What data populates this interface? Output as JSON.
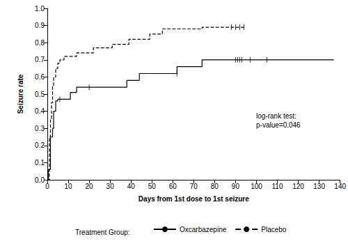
{
  "chart_data": {
    "type": "step",
    "x_label": "Days from 1st dose to 1st seizure",
    "y_label": "Seizure rate",
    "annotations": [
      "log-rank test:",
      "p-value=0.046"
    ],
    "legend_title": "Treatment Group:",
    "legend": "bottom",
    "grid": false,
    "xlim": [
      0,
      140
    ],
    "xticks": [
      0,
      10,
      20,
      30,
      40,
      50,
      60,
      70,
      80,
      90,
      100,
      110,
      120,
      130,
      140
    ],
    "ylim": [
      0,
      1
    ],
    "yticks": [
      {
        "value": 0,
        "label": "0.0"
      },
      {
        "value": 0.1,
        "label": "0.1"
      },
      {
        "value": 0.2,
        "label": "0.2"
      },
      {
        "value": 0.3,
        "label": "0.3"
      },
      {
        "value": 0.4,
        "label": "0.4"
      },
      {
        "value": 0.5,
        "label": "0.5"
      },
      {
        "value": 0.6,
        "label": "0.6"
      },
      {
        "value": 0.7,
        "label": "0.7"
      },
      {
        "value": 0.8,
        "label": "0.8"
      },
      {
        "value": 0.9,
        "label": "0.9"
      },
      {
        "value": 1,
        "label": "1.0"
      }
    ],
    "series": [
      {
        "name": "Oxcarbazepine",
        "color": "#000000",
        "line_style": "solid",
        "x": [
          0,
          0.5,
          1.5,
          2.5,
          3,
          4,
          5,
          11,
          14,
          38,
          44,
          62,
          68,
          74,
          137
        ],
        "values": [
          0,
          0.06,
          0.25,
          0.3,
          0.4,
          0.46,
          0.47,
          0.51,
          0.54,
          0.58,
          0.62,
          0.66,
          0.66,
          0.7,
          0.7
        ],
        "censored_x": [
          6,
          20,
          62,
          90,
          91,
          92,
          93,
          97,
          105
        ],
        "censored_y": [
          0.47,
          0.54,
          0.62,
          0.7,
          0.7,
          0.7,
          0.7,
          0.7,
          0.7
        ]
      },
      {
        "name": "Placebo",
        "color": "#000000",
        "line_style": "dashed",
        "x": [
          0,
          1,
          1.5,
          2,
          2.5,
          3,
          4,
          5,
          6,
          8,
          14,
          22,
          31,
          39,
          49,
          55,
          74,
          94
        ],
        "values": [
          0,
          0.25,
          0.35,
          0.45,
          0.55,
          0.6,
          0.65,
          0.68,
          0.7,
          0.72,
          0.74,
          0.77,
          0.79,
          0.82,
          0.85,
          0.88,
          0.89,
          0.89
        ],
        "censored_x": [
          88,
          90,
          92,
          94
        ],
        "censored_y": [
          0.89,
          0.89,
          0.89,
          0.89
        ]
      }
    ]
  }
}
